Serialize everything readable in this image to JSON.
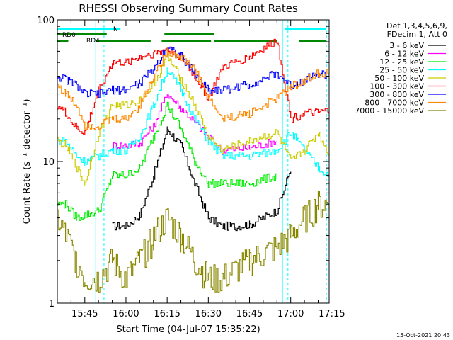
{
  "chart_data": {
    "type": "line",
    "title": "RHESSI Observing Summary Count Rates",
    "xlabel": "Start Time (04-Jul-07 15:35:22)",
    "ylabel": "Count Rate (s⁻¹ detector⁻¹)",
    "y_scale": "log",
    "ylim": [
      1,
      100
    ],
    "xlim": [
      "15:35",
      "17:14"
    ],
    "x_ticks": [
      "15:45",
      "16:00",
      "16:15",
      "16:30",
      "16:45",
      "17:00",
      "17:15"
    ],
    "y_ticks": [
      "1",
      "10",
      "100"
    ],
    "legend_header": [
      "Det 1,3,4,5,6,9,",
      "FDecim 1, Att 0"
    ],
    "legend_position": "top-right",
    "footer_date": "15-Oct-2021 20:43",
    "flag_labels": [
      "N",
      "RD0",
      "RD4"
    ],
    "series": [
      {
        "name": "3 - 6 keV",
        "color": "#000000",
        "x": [
          "15:35",
          "15:50",
          "15:55",
          "16:00",
          "16:05",
          "16:10",
          "16:15",
          "16:20",
          "16:25",
          "16:30",
          "16:35",
          "16:40",
          "16:45",
          "16:55",
          "17:00",
          "17:10",
          "17:14"
        ],
        "values": [
          null,
          null,
          3.5,
          3.5,
          4.2,
          8,
          17,
          13,
          7,
          4,
          3.5,
          3.5,
          3.6,
          4.5,
          9,
          null,
          null
        ]
      },
      {
        "name": "6 - 12 keV",
        "color": "#ff00ff",
        "x": [
          "15:35",
          "15:55",
          "16:00",
          "16:05",
          "16:10",
          "16:15",
          "16:20",
          "16:25",
          "16:30",
          "16:35",
          "16:45",
          "16:55",
          "17:00",
          "17:14"
        ],
        "values": [
          null,
          13,
          13,
          13.5,
          18,
          30,
          24,
          19,
          15,
          12,
          12.5,
          14,
          null,
          null
        ]
      },
      {
        "name": "12 - 25 keV",
        "color": "#00ee00",
        "x": [
          "15:35",
          "15:38",
          "15:42",
          "15:50",
          "15:55",
          "16:00",
          "16:05",
          "16:10",
          "16:15",
          "16:20",
          "16:25",
          "16:30",
          "16:35",
          "16:45",
          "16:55",
          "17:00",
          "17:05",
          "17:14"
        ],
        "values": [
          5,
          5,
          4,
          4.5,
          8,
          8,
          9,
          15,
          25,
          17,
          10,
          7,
          7,
          7,
          8,
          null,
          null,
          null
        ]
      },
      {
        "name": "25 - 50 keV",
        "color": "#00ffff",
        "x": [
          "15:35",
          "15:38",
          "15:42",
          "15:45",
          "15:50",
          "15:55",
          "16:00",
          "16:05",
          "16:10",
          "16:15",
          "16:20",
          "16:25",
          "16:30",
          "16:35",
          "16:45",
          "16:55",
          "17:00",
          "17:05",
          "17:10",
          "17:14"
        ],
        "values": [
          14,
          14,
          11,
          10,
          11,
          12,
          12,
          15,
          25,
          45,
          32,
          20,
          14,
          11,
          11,
          12,
          16,
          12,
          9,
          8
        ]
      },
      {
        "name": "50 - 100 keV",
        "color": "#cccc00",
        "x": [
          "15:35",
          "15:38",
          "15:42",
          "15:45",
          "15:50",
          "15:55",
          "16:00",
          "16:05",
          "16:10",
          "16:15",
          "16:20",
          "16:25",
          "16:30",
          "16:35",
          "16:45",
          "16:55",
          "17:00",
          "17:05",
          "17:10",
          "17:14"
        ],
        "values": [
          14,
          13,
          9,
          7,
          16,
          25,
          25,
          27,
          35,
          55,
          38,
          25,
          15,
          12,
          14,
          16,
          10,
          12,
          16,
          11
        ]
      },
      {
        "name": "100 - 300 keV",
        "color": "#ff0000",
        "x": [
          "15:35",
          "15:38",
          "15:42",
          "15:45",
          "15:50",
          "15:55",
          "16:00",
          "16:05",
          "16:10",
          "16:15",
          "16:20",
          "16:25",
          "16:30",
          "16:35",
          "16:45",
          "16:55",
          "17:00",
          "17:05",
          "17:10",
          "17:14"
        ],
        "values": [
          25,
          22,
          17,
          16,
          32,
          50,
          50,
          55,
          58,
          62,
          55,
          40,
          28,
          46,
          55,
          72,
          20,
          22,
          22,
          23
        ]
      },
      {
        "name": "300 - 800 keV",
        "color": "#0000ff",
        "x": [
          "15:35",
          "15:38",
          "15:42",
          "15:45",
          "15:50",
          "15:55",
          "16:00",
          "16:05",
          "16:10",
          "16:15",
          "16:20",
          "16:25",
          "16:30",
          "16:35",
          "16:45",
          "16:55",
          "17:00",
          "17:05",
          "17:10",
          "17:14"
        ],
        "values": [
          40,
          38,
          35,
          30,
          30,
          32,
          32,
          36,
          45,
          65,
          55,
          42,
          32,
          32,
          35,
          42,
          34,
          38,
          42,
          40
        ]
      },
      {
        "name": "800 - 7000 keV",
        "color": "#ff8800",
        "x": [
          "15:35",
          "15:38",
          "15:42",
          "15:45",
          "15:50",
          "15:55",
          "16:00",
          "16:05",
          "16:10",
          "16:15",
          "16:20",
          "16:25",
          "16:30",
          "16:35",
          "16:45",
          "16:55",
          "17:00",
          "17:05",
          "17:10",
          "17:14"
        ],
        "values": [
          35,
          30,
          25,
          18,
          18,
          20,
          20,
          25,
          40,
          60,
          55,
          45,
          28,
          20,
          22,
          28,
          34,
          37,
          42,
          42
        ]
      },
      {
        "name": "7000 - 15000 keV",
        "color": "#888800",
        "x": [
          "15:35",
          "15:38",
          "15:42",
          "15:45",
          "15:50",
          "15:55",
          "16:00",
          "16:05",
          "16:10",
          "16:15",
          "16:20",
          "16:25",
          "16:30",
          "16:35",
          "16:45",
          "16:55",
          "17:00",
          "17:05",
          "17:10",
          "17:14"
        ],
        "values": [
          4,
          3,
          2,
          1.5,
          1.5,
          2,
          1.5,
          2,
          3,
          4,
          3,
          2,
          1.5,
          1.5,
          2,
          2.5,
          3,
          4,
          5,
          5
        ]
      }
    ]
  }
}
